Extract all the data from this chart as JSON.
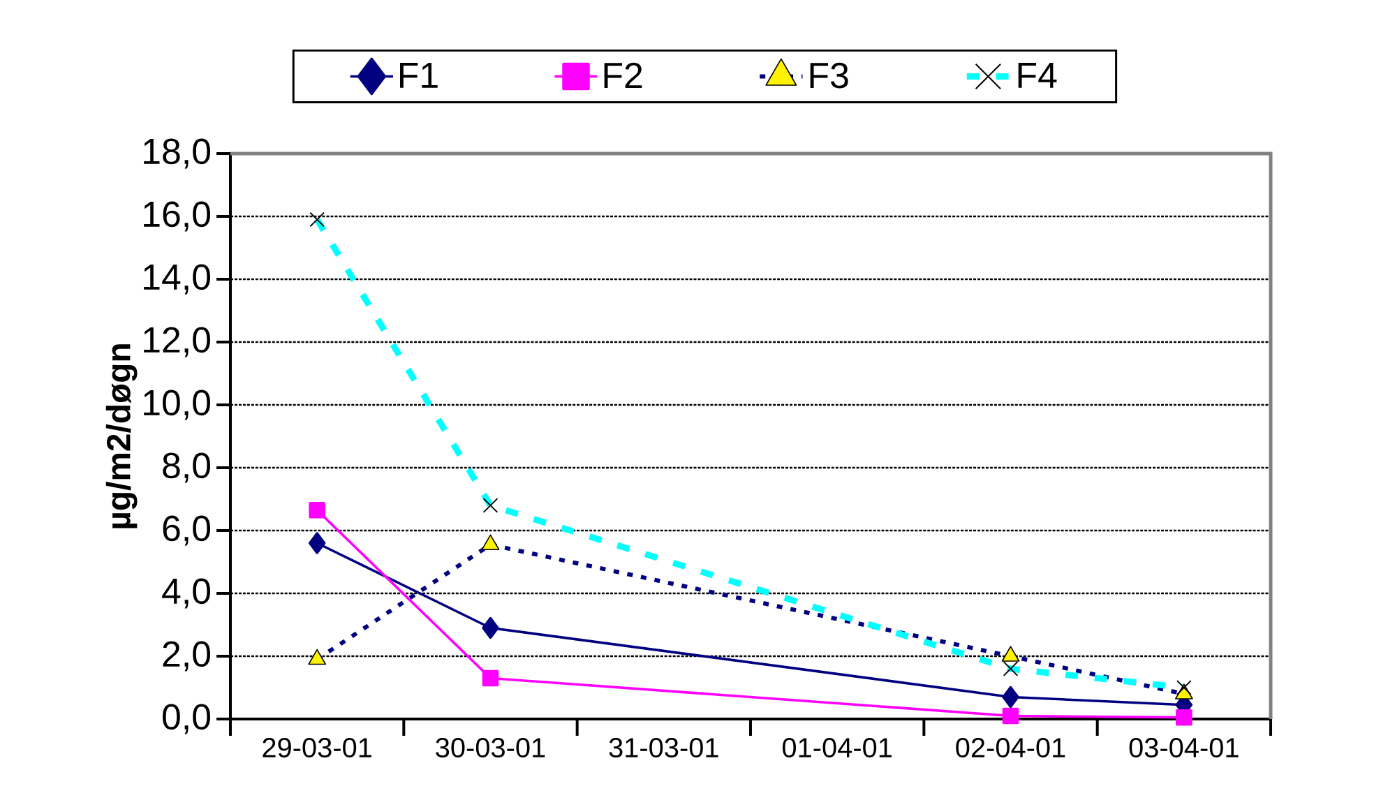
{
  "chart_data": {
    "type": "line",
    "ylabel": "µg/m2/døgn",
    "categories": [
      "29-03-01",
      "30-03-01",
      "31-03-01",
      "01-04-01",
      "02-04-01",
      "03-04-01"
    ],
    "series": [
      {
        "name": "F1",
        "color": "#000080",
        "marker": "diamond",
        "line_style": "solid",
        "values": [
          5.6,
          2.9,
          null,
          null,
          0.7,
          0.45
        ]
      },
      {
        "name": "F2",
        "color": "#ff00ff",
        "marker": "square",
        "line_style": "solid",
        "values": [
          6.65,
          1.3,
          null,
          null,
          0.1,
          0.05
        ]
      },
      {
        "name": "F3",
        "color": "#000080",
        "marker": "triangle",
        "line_style": "dotted",
        "values": [
          1.9,
          5.55,
          null,
          null,
          2.0,
          0.8
        ]
      },
      {
        "name": "F4",
        "color": "#00ffff",
        "marker": "cross",
        "line_style": "dashed",
        "values": [
          15.9,
          6.8,
          null,
          null,
          1.6,
          1.0
        ]
      }
    ],
    "ylim": [
      0,
      18
    ],
    "yticks": [
      {
        "value": 0,
        "label": "0,0"
      },
      {
        "value": 2,
        "label": "2,0"
      },
      {
        "value": 4,
        "label": "4,0"
      },
      {
        "value": 6,
        "label": "6,0"
      },
      {
        "value": 8,
        "label": "8,0"
      },
      {
        "value": 10,
        "label": "10,0"
      },
      {
        "value": 12,
        "label": "12,0"
      },
      {
        "value": 14,
        "label": "14,0"
      },
      {
        "value": 16,
        "label": "16,0"
      },
      {
        "value": 18,
        "label": "18,0"
      }
    ],
    "grid": "y",
    "legend": "top"
  }
}
